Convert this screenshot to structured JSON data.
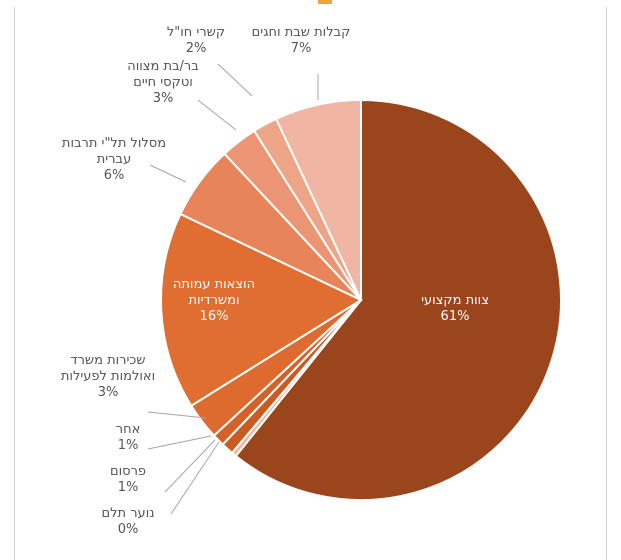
{
  "chart_data": {
    "type": "pie",
    "slices": [
      {
        "label_lines": [
          "צוות מקצועי"
        ],
        "value": 61,
        "value_text": "61%",
        "color": "#9a451c"
      },
      {
        "label_lines": [
          "נוער תלם"
        ],
        "value": 0.4,
        "value_text": "0%",
        "color": "#f0b79d"
      },
      {
        "label_lines": [
          "פרסום"
        ],
        "value": 1,
        "value_text": "1%",
        "color": "#c95a22"
      },
      {
        "label_lines": [
          "אחר"
        ],
        "value": 1,
        "value_text": "1%",
        "color": "#d3622a"
      },
      {
        "label_lines": [
          "שכירות משרד",
          "ואולמות לפעילות"
        ],
        "value": 3,
        "value_text": "3%",
        "color": "#dd6a2e"
      },
      {
        "label_lines": [
          "הוצאות עמותה",
          "ומשרדיות"
        ],
        "value": 16,
        "value_text": "16%",
        "color": "#e06e30"
      },
      {
        "label_lines": [
          "מסלול תל\"י תרבות",
          "עברית"
        ],
        "value": 6,
        "value_text": "6%",
        "color": "#e8845a"
      },
      {
        "label_lines": [
          "בר/בת מצווה",
          "וטקסי חיים"
        ],
        "value": 3,
        "value_text": "3%",
        "color": "#ec9575"
      },
      {
        "label_lines": [
          "קשרי חו\"ל"
        ],
        "value": 2,
        "value_text": "2%",
        "color": "#eea487"
      },
      {
        "label_lines": [
          "קבלות שבת וחגים"
        ],
        "value": 7,
        "value_text": "7%",
        "color": "#f1b6a3"
      }
    ]
  }
}
